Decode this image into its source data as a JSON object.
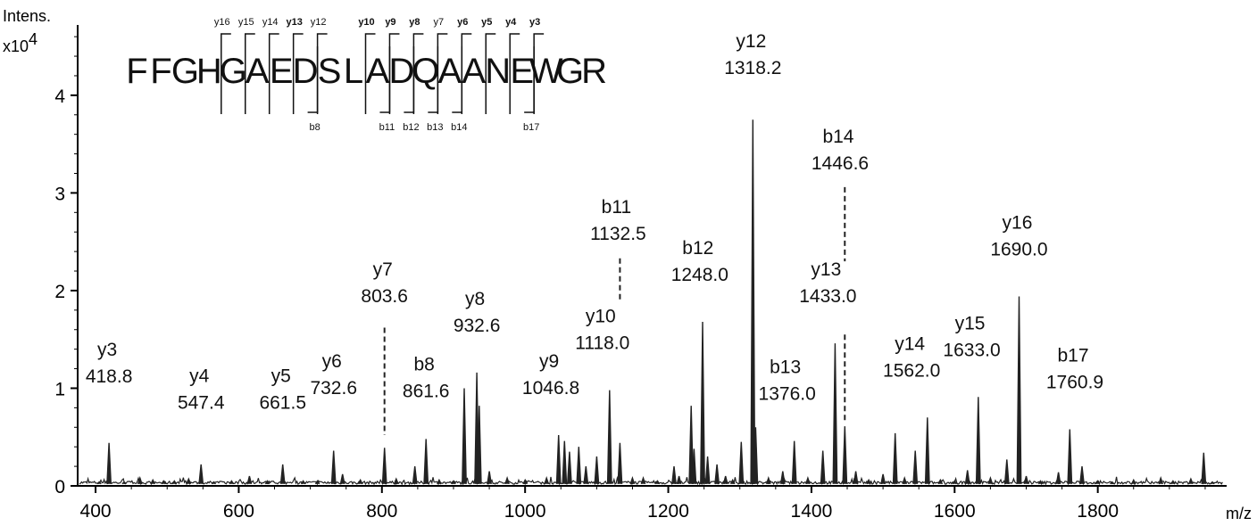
{
  "chart_data": {
    "type": "line",
    "ylabel": "Intens.",
    "yexp_base": "x10",
    "yexp_power": "4",
    "xlabel": "m/z",
    "xlim": [
      375,
      1980
    ],
    "ylim": [
      0,
      4.72
    ],
    "xticks": [
      400,
      600,
      800,
      1000,
      1200,
      1400,
      1600,
      1800
    ],
    "yticks": [
      0,
      1,
      2,
      3,
      4
    ],
    "peaks": [
      [
        405,
        0.04
      ],
      [
        418.8,
        0.44
      ],
      [
        440,
        0.04
      ],
      [
        462,
        0.08
      ],
      [
        480,
        0.06
      ],
      [
        495,
        0.05
      ],
      [
        510,
        0.05
      ],
      [
        530,
        0.07
      ],
      [
        547.4,
        0.22
      ],
      [
        565,
        0.04
      ],
      [
        590,
        0.05
      ],
      [
        615,
        0.1
      ],
      [
        640,
        0.05
      ],
      [
        661.5,
        0.22
      ],
      [
        690,
        0.05
      ],
      [
        710,
        0.05
      ],
      [
        732.6,
        0.36
      ],
      [
        745,
        0.12
      ],
      [
        770,
        0.06
      ],
      [
        803.6,
        0.39
      ],
      [
        820,
        0.07
      ],
      [
        846,
        0.2
      ],
      [
        861.6,
        0.48
      ],
      [
        880,
        0.06
      ],
      [
        900,
        0.05
      ],
      [
        915,
        1.0
      ],
      [
        932.6,
        1.16
      ],
      [
        936,
        0.82
      ],
      [
        950,
        0.15
      ],
      [
        975,
        0.08
      ],
      [
        1000,
        0.06
      ],
      [
        1030,
        0.08
      ],
      [
        1046.8,
        0.52
      ],
      [
        1055,
        0.46
      ],
      [
        1062,
        0.35
      ],
      [
        1075,
        0.4
      ],
      [
        1085,
        0.2
      ],
      [
        1100,
        0.3
      ],
      [
        1118.0,
        0.98
      ],
      [
        1132.5,
        0.44
      ],
      [
        1150,
        0.08
      ],
      [
        1165,
        0.08
      ],
      [
        1185,
        0.05
      ],
      [
        1208,
        0.2
      ],
      [
        1215,
        0.1
      ],
      [
        1232,
        0.82
      ],
      [
        1236,
        0.38
      ],
      [
        1248.0,
        1.68
      ],
      [
        1255,
        0.3
      ],
      [
        1268,
        0.22
      ],
      [
        1280,
        0.1
      ],
      [
        1290,
        0.06
      ],
      [
        1302,
        0.45
      ],
      [
        1318.2,
        3.75
      ],
      [
        1322,
        0.6
      ],
      [
        1340,
        0.08
      ],
      [
        1360,
        0.15
      ],
      [
        1376.0,
        0.46
      ],
      [
        1395,
        0.08
      ],
      [
        1416,
        0.36
      ],
      [
        1433.0,
        1.46
      ],
      [
        1446.6,
        0.61
      ],
      [
        1462,
        0.15
      ],
      [
        1480,
        0.06
      ],
      [
        1500,
        0.12
      ],
      [
        1517,
        0.54
      ],
      [
        1530,
        0.08
      ],
      [
        1545,
        0.36
      ],
      [
        1562.0,
        0.7
      ],
      [
        1580,
        0.06
      ],
      [
        1600,
        0.05
      ],
      [
        1618,
        0.16
      ],
      [
        1633.0,
        0.91
      ],
      [
        1650,
        0.08
      ],
      [
        1673,
        0.27
      ],
      [
        1690.0,
        1.94
      ],
      [
        1700,
        0.1
      ],
      [
        1720,
        0.05
      ],
      [
        1745,
        0.14
      ],
      [
        1760.9,
        0.58
      ],
      [
        1778,
        0.2
      ],
      [
        1800,
        0.05
      ],
      [
        1820,
        0.04
      ],
      [
        1850,
        0.06
      ],
      [
        1888,
        0.08
      ],
      [
        1905,
        0.05
      ],
      [
        1930,
        0.07
      ],
      [
        1948,
        0.34
      ],
      [
        1960,
        0.04
      ]
    ],
    "annotations": [
      {
        "ion": "y3",
        "mz": "418.8",
        "x": 418.8,
        "ytop": 0.44,
        "lx": 418.8,
        "ly": 1.06,
        "dashed": false
      },
      {
        "ion": "y4",
        "mz": "547.4",
        "x": 547.4,
        "ytop": 0.22,
        "lx": 547.4,
        "ly": 0.79,
        "dashed": false
      },
      {
        "ion": "y5",
        "mz": "661.5",
        "x": 661.5,
        "ytop": 0.22,
        "lx": 661.5,
        "ly": 0.79,
        "dashed": false
      },
      {
        "ion": "y6",
        "mz": "732.6",
        "x": 732.6,
        "ytop": 0.36,
        "lx": 732.6,
        "ly": 0.94,
        "dashed": false
      },
      {
        "ion": "y7",
        "mz": "803.6",
        "x": 803.6,
        "ytop": 0.39,
        "lx": 803.6,
        "ly": 1.88,
        "dashed": true,
        "dash_top": 1.62,
        "dash_bottom": 0.52
      },
      {
        "ion": "b8",
        "mz": "861.6",
        "x": 861.6,
        "ytop": 0.48,
        "lx": 861.6,
        "ly": 0.91,
        "dashed": false
      },
      {
        "ion": "y8",
        "mz": "932.6",
        "x": 932.6,
        "ytop": 1.16,
        "lx": 932.6,
        "ly": 1.58,
        "dashed": false
      },
      {
        "ion": "y9",
        "mz": "1046.8",
        "x": 1046.8,
        "ytop": 0.52,
        "lx": 1036,
        "ly": 0.94,
        "dashed": false
      },
      {
        "ion": "y10",
        "mz": "1118.0",
        "x": 1118.0,
        "ytop": 0.98,
        "lx": 1108,
        "ly": 1.4,
        "dashed": false
      },
      {
        "ion": "b11",
        "mz": "1132.5",
        "x": 1132.5,
        "ytop": 0.44,
        "lx": 1130,
        "ly": 2.52,
        "dashed": true,
        "dash_top": 2.33,
        "dash_bottom": 1.88
      },
      {
        "ion": "b12",
        "mz": "1248.0",
        "x": 1248.0,
        "ytop": 1.68,
        "lx": 1244,
        "ly": 2.1,
        "dashed": false
      },
      {
        "ion": "y12",
        "mz": "1318.2",
        "x": 1318.2,
        "ytop": 3.75,
        "lx": 1318.2,
        "ly": 4.22,
        "dashed": false
      },
      {
        "ion": "b13",
        "mz": "1376.0",
        "x": 1376.0,
        "ytop": 0.46,
        "lx": 1366,
        "ly": 0.88,
        "dashed": false
      },
      {
        "ion": "y13",
        "mz": "1433.0",
        "x": 1433.0,
        "ytop": 1.46,
        "lx": 1423,
        "ly": 1.88,
        "dashed": false
      },
      {
        "ion": "b14",
        "mz": "1446.6",
        "x": 1446.6,
        "ytop": 0.61,
        "lx": 1440,
        "ly": 3.24,
        "dashed": true,
        "dash_top": 3.06,
        "dash_bottom": 2.3,
        "dash2_top": 1.55,
        "dash2_bottom": 0.66
      },
      {
        "ion": "y14",
        "mz": "1562.0",
        "x": 1562.0,
        "ytop": 0.7,
        "lx": 1540,
        "ly": 1.12,
        "dashed": false
      },
      {
        "ion": "y15",
        "mz": "1633.0",
        "x": 1633.0,
        "ytop": 0.91,
        "lx": 1624,
        "ly": 1.33,
        "dashed": false
      },
      {
        "ion": "y16",
        "mz": "1690.0",
        "x": 1690.0,
        "ytop": 1.94,
        "lx": 1690,
        "ly": 2.36,
        "dashed": false
      },
      {
        "ion": "b17",
        "mz": "1760.9",
        "x": 1760.9,
        "ytop": 0.58,
        "lx": 1768,
        "ly": 1.0,
        "dashed": false
      }
    ],
    "sequence": {
      "letters": [
        "F",
        "F",
        "G",
        "H",
        "G",
        "A",
        "E",
        "D",
        "S",
        "L",
        "A",
        "D",
        "Q",
        "A",
        "A",
        "N",
        "E",
        "W",
        "G",
        "R"
      ],
      "y_ions": [
        {
          "label": "y16",
          "after": 4,
          "bold": false
        },
        {
          "label": "y15",
          "after": 5,
          "bold": false
        },
        {
          "label": "y14",
          "after": 6,
          "bold": false
        },
        {
          "label": "y13",
          "after": 7,
          "bold": true
        },
        {
          "label": "y12",
          "after": 8,
          "bold": false
        },
        {
          "label": "y10",
          "after": 10,
          "bold": true
        },
        {
          "label": "y9",
          "after": 11,
          "bold": true
        },
        {
          "label": "y8",
          "after": 12,
          "bold": true
        },
        {
          "label": "y7",
          "after": 13,
          "bold": false
        },
        {
          "label": "y6",
          "after": 14,
          "bold": true
        },
        {
          "label": "y5",
          "after": 15,
          "bold": true
        },
        {
          "label": "y4",
          "after": 16,
          "bold": true
        },
        {
          "label": "y3",
          "after": 17,
          "bold": true
        }
      ],
      "b_ions": [
        {
          "label": "b8",
          "after": 8
        },
        {
          "label": "b11",
          "after": 11
        },
        {
          "label": "b12",
          "after": 12
        },
        {
          "label": "b13",
          "after": 13
        },
        {
          "label": "b14",
          "after": 14
        },
        {
          "label": "b17",
          "after": 17
        }
      ]
    }
  }
}
